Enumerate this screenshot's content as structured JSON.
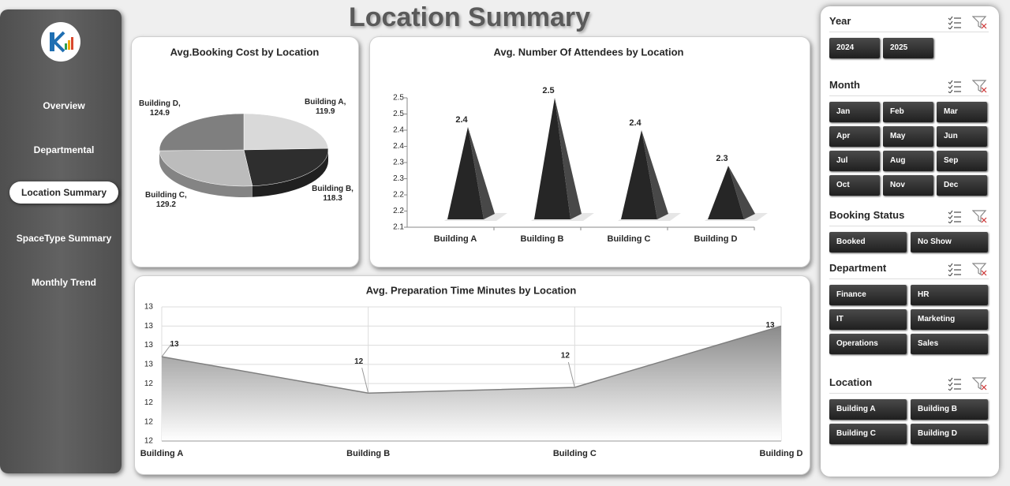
{
  "header": {
    "title": "Location Summary"
  },
  "nav": [
    "Overview",
    "Departmental",
    "Location Summary",
    "SpaceType Summary",
    "Monthly Trend"
  ],
  "chart_data": [
    {
      "type": "pie",
      "title": "Avg.Booking Cost by Location",
      "categories": [
        "Building A",
        "Building B",
        "Building C",
        "Building D"
      ],
      "values": [
        119.9,
        118.3,
        129.2,
        124.9
      ],
      "value_labels": [
        "Building A, 119.9",
        "Building B, 118.3",
        "Building C, 129.2",
        "Building D, 124.9"
      ],
      "colors": [
        "#d9d9d9",
        "#2e2e2e",
        "#bcbcbc",
        "#7f7f7f"
      ]
    },
    {
      "type": "pyramid",
      "title": "Avg. Number Of Attendees by Location",
      "categories": [
        "Building A",
        "Building B",
        "Building C",
        "Building D"
      ],
      "values": [
        2.41,
        2.5,
        2.4,
        2.29
      ],
      "value_labels": [
        "2.4",
        "2.5",
        "2.4",
        "2.3"
      ],
      "color": "#262626",
      "ylim": [
        2.1,
        2.5
      ],
      "yticks": [
        2.1,
        {
          "value": 2.15,
          "label": "2.2"
        },
        2.2,
        {
          "value": 2.25,
          "label": "2.3"
        },
        2.3,
        {
          "value": 2.35,
          "label": "2.4"
        },
        2.4,
        {
          "value": 2.45,
          "label": "2.5"
        },
        2.5
      ],
      "grid": false
    },
    {
      "type": "area",
      "title": "Avg. Preparation Time Minutes by Location",
      "categories": [
        "Building A",
        "Building B",
        "Building C",
        "Building D"
      ],
      "values": [
        12.54,
        12.35,
        12.38,
        12.7
      ],
      "value_labels": [
        "13",
        "12",
        "12",
        "13"
      ],
      "color": "#7f7f7f",
      "ylim": [
        12.1,
        12.8
      ],
      "yticks": [
        {
          "value": 12.1,
          "label": "12"
        },
        {
          "value": 12.2,
          "label": "12"
        },
        {
          "value": 12.3,
          "label": "12"
        },
        {
          "value": 12.4,
          "label": "12"
        },
        {
          "value": 12.5,
          "label": "13"
        },
        {
          "value": 12.6,
          "label": "13"
        },
        {
          "value": 12.7,
          "label": "13"
        },
        {
          "value": 12.8,
          "label": "13"
        }
      ],
      "grid": true
    }
  ],
  "slicers": [
    {
      "title": "Year",
      "items": [
        "2024",
        "2025"
      ]
    },
    {
      "title": "Month",
      "items": [
        "Jan",
        "Feb",
        "Mar",
        "Apr",
        "May",
        "Jun",
        "Jul",
        "Aug",
        "Sep",
        "Oct",
        "Nov",
        "Dec"
      ]
    },
    {
      "title": "Booking Status",
      "items": [
        "Booked",
        "No Show"
      ]
    },
    {
      "title": "Department",
      "items": [
        "Finance",
        "HR",
        "IT",
        "Marketing",
        "Operations",
        "Sales"
      ]
    },
    {
      "title": "Location",
      "items": [
        "Building A",
        "Building B",
        "Building C",
        "Building D"
      ]
    }
  ]
}
